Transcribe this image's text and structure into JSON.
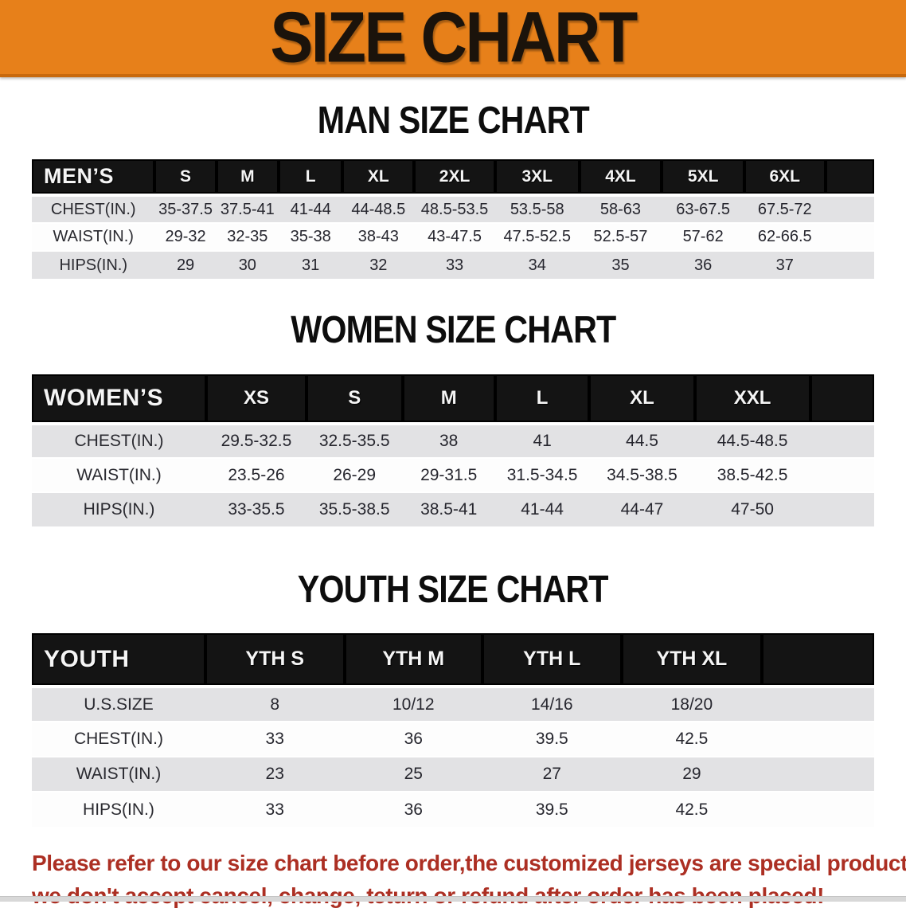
{
  "banner": {
    "title": "SIZE CHART"
  },
  "sections": [
    {
      "heading": "MAN SIZE CHART",
      "header_label": "MEN’S",
      "columns": [
        "S",
        "M",
        "L",
        "XL",
        "2XL",
        "3XL",
        "4XL",
        "5XL",
        "6XL"
      ],
      "rows": [
        {
          "label": "CHEST(IN.)",
          "values": [
            "35-37.5",
            "37.5-41",
            "41-44",
            "44-48.5",
            "48.5-53.5",
            "53.5-58",
            "58-63",
            "63-67.5",
            "67.5-72"
          ]
        },
        {
          "label": "WAIST(IN.)",
          "values": [
            "29-32",
            "32-35",
            "35-38",
            "38-43",
            "43-47.5",
            "47.5-52.5",
            "52.5-57",
            "57-62",
            "62-66.5"
          ]
        },
        {
          "label": "HIPS(IN.)",
          "values": [
            "29",
            "30",
            "31",
            "32",
            "33",
            "34",
            "35",
            "36",
            "37"
          ]
        }
      ]
    },
    {
      "heading": "WOMEN SIZE CHART",
      "header_label": "WOMEN’S",
      "columns": [
        "XS",
        "S",
        "M",
        "L",
        "XL",
        "XXL"
      ],
      "rows": [
        {
          "label": "CHEST(IN.)",
          "values": [
            "29.5-32.5",
            "32.5-35.5",
            "38",
            "41",
            "44.5",
            "44.5-48.5"
          ]
        },
        {
          "label": "WAIST(IN.)",
          "values": [
            "23.5-26",
            "26-29",
            "29-31.5",
            "31.5-34.5",
            "34.5-38.5",
            "38.5-42.5"
          ]
        },
        {
          "label": "HIPS(IN.)",
          "values": [
            "33-35.5",
            "35.5-38.5",
            "38.5-41",
            "41-44",
            "44-47",
            "47-50"
          ]
        }
      ]
    },
    {
      "heading": "YOUTH SIZE CHART",
      "header_label": "YOUTH",
      "columns": [
        "YTH S",
        "YTH M",
        "YTH L",
        "YTH XL"
      ],
      "rows": [
        {
          "label": "U.S.SIZE",
          "values": [
            "8",
            "10/12",
            "14/16",
            "18/20"
          ]
        },
        {
          "label": "CHEST(IN.)",
          "values": [
            "33",
            "36",
            "39.5",
            "42.5"
          ]
        },
        {
          "label": "WAIST(IN.)",
          "values": [
            "23",
            "25",
            "27",
            "29"
          ]
        },
        {
          "label": "HIPS(IN.)",
          "values": [
            "33",
            "36",
            "39.5",
            "42.5"
          ]
        }
      ]
    }
  ],
  "disclaimer": {
    "line1": "Please refer to our size chart before order,the customized jerseys are special products,",
    "line2": "we don't accept cancel, change, teturn or refund after order has been placed!"
  },
  "colors": {
    "banner_bg": "#E7801A",
    "header_bar": "#141414",
    "row_shade": "#E2E2E4",
    "disclaimer_text": "#AC2F23"
  }
}
